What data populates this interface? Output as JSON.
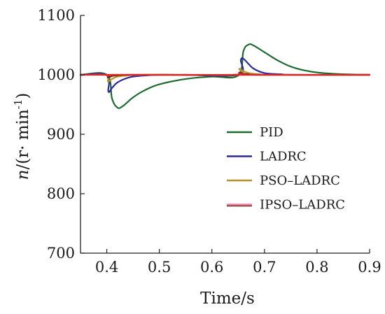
{
  "chart_data": {
    "type": "line",
    "title": "",
    "xlabel": "Time/s",
    "ylabel_main": "n",
    "ylabel_rest": "/(r· min",
    "ylabel_sup": "-1",
    "ylabel_close": ")",
    "xlim": [
      0.35,
      0.9
    ],
    "ylim": [
      700,
      1100
    ],
    "xticks": [
      0.4,
      0.5,
      0.6,
      0.7,
      0.8,
      0.9
    ],
    "xtick_labels": [
      "0.4",
      "0.5",
      "0.6",
      "0.7",
      "0.8",
      "0.9"
    ],
    "yticks": [
      700,
      800,
      900,
      1000,
      1100
    ],
    "ytick_labels": [
      "700",
      "800",
      "900",
      "1000",
      "1100"
    ],
    "grid": false,
    "legend_position": "right",
    "series": [
      {
        "name": "PID",
        "color": "#1e6b2e",
        "x": [
          0.35,
          0.4,
          0.41,
          0.42,
          0.43,
          0.45,
          0.47,
          0.5,
          0.55,
          0.6,
          0.65,
          0.66,
          0.67,
          0.68,
          0.7,
          0.73,
          0.76,
          0.8,
          0.85,
          0.9
        ],
        "y": [
          1000,
          1000,
          960,
          945,
          947,
          962,
          973,
          984,
          993,
          997,
          999,
          1040,
          1051,
          1049,
          1038,
          1022,
          1011,
          1004,
          1001,
          1000
        ]
      },
      {
        "name": "LADRC",
        "color": "#2a2a9a",
        "x": [
          0.35,
          0.4,
          0.403,
          0.41,
          0.42,
          0.44,
          0.46,
          0.5,
          0.55,
          0.65,
          0.655,
          0.66,
          0.67,
          0.68,
          0.7,
          0.73,
          0.76,
          0.9
        ],
        "y": [
          1000,
          1000,
          972,
          978,
          987,
          995,
          998,
          1000,
          1000,
          1000,
          1025,
          1027,
          1018,
          1010,
          1003,
          1001,
          1000,
          1000
        ]
      },
      {
        "name": "PSO–LADRC",
        "color": "#b8902a",
        "x": [
          0.35,
          0.4,
          0.402,
          0.41,
          0.42,
          0.44,
          0.47,
          0.55,
          0.65,
          0.652,
          0.66,
          0.67,
          0.69,
          0.72,
          0.9
        ],
        "y": [
          1000,
          1000,
          989,
          993,
          997,
          999,
          1000,
          1000,
          1000,
          1010,
          1006,
          1003,
          1001,
          1000,
          1000
        ]
      },
      {
        "name": "IPSO–LADRC",
        "color": "#5c2a10",
        "x": [
          0.35,
          0.4,
          0.402,
          0.41,
          0.42,
          0.44,
          0.5,
          0.65,
          0.652,
          0.66,
          0.67,
          0.69,
          0.9
        ],
        "y": [
          1000,
          1000,
          995,
          998,
          999,
          1000,
          1000,
          1000,
          1004,
          1002,
          1001,
          1000,
          1000
        ]
      },
      {
        "name": "",
        "color": "#d62a2a",
        "x": [
          0.35,
          0.4,
          0.401,
          0.405,
          0.41,
          0.5,
          0.65,
          0.651,
          0.655,
          0.66,
          0.9
        ],
        "y": [
          1000,
          1000,
          998,
          999.5,
          1000,
          1000,
          1000,
          1002,
          1000.5,
          1000,
          1000
        ]
      }
    ],
    "legend_marker_colors": [
      "#1e6b2e",
      "#2a2a9a",
      "#b8902a",
      "#ff7aa8"
    ]
  }
}
